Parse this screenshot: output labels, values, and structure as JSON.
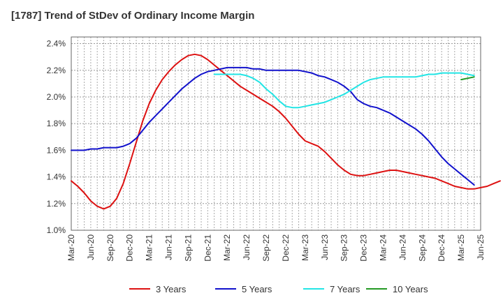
{
  "chart_data": {
    "type": "line",
    "title": "[1787]  Trend of StDev of Ordinary Income Margin",
    "xlabel": "",
    "ylabel": "",
    "ylim": [
      1.0,
      2.45
    ],
    "y_ticks": [
      "1.0%",
      "1.2%",
      "1.4%",
      "1.6%",
      "1.8%",
      "2.0%",
      "2.2%",
      "2.4%"
    ],
    "x_ticks": [
      "Mar-20",
      "Jun-20",
      "Sep-20",
      "Dec-20",
      "Mar-21",
      "Jun-21",
      "Sep-21",
      "Dec-21",
      "Mar-22",
      "Jun-22",
      "Sep-22",
      "Dec-22",
      "Mar-23",
      "Jun-23",
      "Sep-23",
      "Dec-23",
      "Mar-24",
      "Jun-24",
      "Sep-24",
      "Dec-24",
      "Mar-25",
      "Jun-25"
    ],
    "grid": true,
    "legend_position": "bottom",
    "series": [
      {
        "name": "3 Years",
        "color": "#dd1111",
        "points": [
          [
            "Mar-20",
            1.37
          ],
          [
            "Apr-20",
            1.33
          ],
          [
            "May-20",
            1.28
          ],
          [
            "Jun-20",
            1.22
          ],
          [
            "Jul-20",
            1.18
          ],
          [
            "Aug-20",
            1.16
          ],
          [
            "Sep-20",
            1.18
          ],
          [
            "Oct-20",
            1.24
          ],
          [
            "Nov-20",
            1.35
          ],
          [
            "Dec-20",
            1.5
          ],
          [
            "Jan-21",
            1.66
          ],
          [
            "Feb-21",
            1.82
          ],
          [
            "Mar-21",
            1.95
          ],
          [
            "Apr-21",
            2.05
          ],
          [
            "May-21",
            2.13
          ],
          [
            "Jun-21",
            2.19
          ],
          [
            "Jul-21",
            2.24
          ],
          [
            "Aug-21",
            2.28
          ],
          [
            "Sep-21",
            2.31
          ],
          [
            "Oct-21",
            2.32
          ],
          [
            "Nov-21",
            2.31
          ],
          [
            "Dec-21",
            2.28
          ],
          [
            "Jan-22",
            2.24
          ],
          [
            "Feb-22",
            2.2
          ],
          [
            "Mar-22",
            2.16
          ],
          [
            "Apr-22",
            2.12
          ],
          [
            "May-22",
            2.08
          ],
          [
            "Jun-22",
            2.05
          ],
          [
            "Jul-22",
            2.02
          ],
          [
            "Aug-22",
            1.99
          ],
          [
            "Sep-22",
            1.96
          ],
          [
            "Oct-22",
            1.93
          ],
          [
            "Nov-22",
            1.89
          ],
          [
            "Dec-22",
            1.84
          ],
          [
            "Jan-23",
            1.78
          ],
          [
            "Feb-23",
            1.72
          ],
          [
            "Mar-23",
            1.67
          ],
          [
            "Apr-23",
            1.65
          ],
          [
            "May-23",
            1.63
          ],
          [
            "Jun-23",
            1.59
          ],
          [
            "Jul-23",
            1.54
          ],
          [
            "Aug-23",
            1.49
          ],
          [
            "Sep-23",
            1.45
          ],
          [
            "Oct-23",
            1.42
          ],
          [
            "Nov-23",
            1.41
          ],
          [
            "Dec-23",
            1.41
          ],
          [
            "Jan-24",
            1.42
          ],
          [
            "Feb-24",
            1.43
          ],
          [
            "Mar-24",
            1.44
          ],
          [
            "Apr-24",
            1.45
          ],
          [
            "May-24",
            1.45
          ],
          [
            "Jun-24",
            1.44
          ],
          [
            "Jul-24",
            1.43
          ],
          [
            "Aug-24",
            1.42
          ],
          [
            "Sep-24",
            1.41
          ],
          [
            "Oct-24",
            1.4
          ],
          [
            "Nov-24",
            1.39
          ],
          [
            "Dec-24",
            1.37
          ],
          [
            "Jan-25",
            1.35
          ],
          [
            "Feb-25",
            1.33
          ],
          [
            "Mar-25",
            1.32
          ],
          [
            "Apr-25",
            1.31
          ],
          [
            "May-25",
            1.31
          ],
          [
            "Jun-25",
            1.32
          ],
          [
            "Jul-25",
            1.33
          ],
          [
            "Aug-25",
            1.35
          ],
          [
            "Sep-25",
            1.37
          ]
        ]
      },
      {
        "name": "5 Years",
        "color": "#1111cc",
        "points": [
          [
            "Mar-20",
            1.6
          ],
          [
            "Apr-20",
            1.6
          ],
          [
            "May-20",
            1.6
          ],
          [
            "Jun-20",
            1.61
          ],
          [
            "Jul-20",
            1.61
          ],
          [
            "Aug-20",
            1.62
          ],
          [
            "Sep-20",
            1.62
          ],
          [
            "Oct-20",
            1.62
          ],
          [
            "Nov-20",
            1.63
          ],
          [
            "Dec-20",
            1.65
          ],
          [
            "Jan-21",
            1.69
          ],
          [
            "Feb-21",
            1.75
          ],
          [
            "Mar-21",
            1.81
          ],
          [
            "Apr-21",
            1.86
          ],
          [
            "May-21",
            1.91
          ],
          [
            "Jun-21",
            1.96
          ],
          [
            "Jul-21",
            2.01
          ],
          [
            "Aug-21",
            2.06
          ],
          [
            "Sep-21",
            2.1
          ],
          [
            "Oct-21",
            2.14
          ],
          [
            "Nov-21",
            2.17
          ],
          [
            "Dec-21",
            2.19
          ],
          [
            "Jan-22",
            2.2
          ],
          [
            "Feb-22",
            2.21
          ],
          [
            "Mar-22",
            2.22
          ],
          [
            "Apr-22",
            2.22
          ],
          [
            "May-22",
            2.22
          ],
          [
            "Jun-22",
            2.22
          ],
          [
            "Jul-22",
            2.21
          ],
          [
            "Aug-22",
            2.21
          ],
          [
            "Sep-22",
            2.2
          ],
          [
            "Oct-22",
            2.2
          ],
          [
            "Nov-22",
            2.2
          ],
          [
            "Dec-22",
            2.2
          ],
          [
            "Jan-23",
            2.2
          ],
          [
            "Feb-23",
            2.2
          ],
          [
            "Mar-23",
            2.19
          ],
          [
            "Apr-23",
            2.18
          ],
          [
            "May-23",
            2.16
          ],
          [
            "Jun-23",
            2.15
          ],
          [
            "Jul-23",
            2.13
          ],
          [
            "Aug-23",
            2.11
          ],
          [
            "Sep-23",
            2.08
          ],
          [
            "Oct-23",
            2.04
          ],
          [
            "Nov-23",
            1.98
          ],
          [
            "Dec-23",
            1.95
          ],
          [
            "Jan-24",
            1.93
          ],
          [
            "Feb-24",
            1.92
          ],
          [
            "Mar-24",
            1.9
          ],
          [
            "Apr-24",
            1.88
          ],
          [
            "May-24",
            1.85
          ],
          [
            "Jun-24",
            1.82
          ],
          [
            "Jul-24",
            1.79
          ],
          [
            "Aug-24",
            1.76
          ],
          [
            "Sep-24",
            1.72
          ],
          [
            "Oct-24",
            1.67
          ],
          [
            "Nov-24",
            1.61
          ],
          [
            "Dec-24",
            1.55
          ],
          [
            "Jan-25",
            1.5
          ],
          [
            "Feb-25",
            1.46
          ],
          [
            "Mar-25",
            1.42
          ],
          [
            "Apr-25",
            1.38
          ],
          [
            "May-25",
            1.34
          ]
        ]
      },
      {
        "name": "7 Years",
        "color": "#22e5e5",
        "points": [
          [
            "Jan-22",
            2.17
          ],
          [
            "Feb-22",
            2.17
          ],
          [
            "Mar-22",
            2.17
          ],
          [
            "Apr-22",
            2.17
          ],
          [
            "May-22",
            2.17
          ],
          [
            "Jun-22",
            2.16
          ],
          [
            "Jul-22",
            2.14
          ],
          [
            "Aug-22",
            2.11
          ],
          [
            "Sep-22",
            2.06
          ],
          [
            "Oct-22",
            2.02
          ],
          [
            "Nov-22",
            1.97
          ],
          [
            "Dec-22",
            1.93
          ],
          [
            "Jan-23",
            1.92
          ],
          [
            "Feb-23",
            1.92
          ],
          [
            "Mar-23",
            1.93
          ],
          [
            "Apr-23",
            1.94
          ],
          [
            "May-23",
            1.95
          ],
          [
            "Jun-23",
            1.96
          ],
          [
            "Jul-23",
            1.98
          ],
          [
            "Aug-23",
            2.0
          ],
          [
            "Sep-23",
            2.02
          ],
          [
            "Oct-23",
            2.05
          ],
          [
            "Nov-23",
            2.08
          ],
          [
            "Dec-23",
            2.11
          ],
          [
            "Jan-24",
            2.13
          ],
          [
            "Feb-24",
            2.14
          ],
          [
            "Mar-24",
            2.15
          ],
          [
            "Apr-24",
            2.15
          ],
          [
            "May-24",
            2.15
          ],
          [
            "Jun-24",
            2.15
          ],
          [
            "Jul-24",
            2.15
          ],
          [
            "Aug-24",
            2.15
          ],
          [
            "Sep-24",
            2.16
          ],
          [
            "Oct-24",
            2.17
          ],
          [
            "Nov-24",
            2.17
          ],
          [
            "Dec-24",
            2.18
          ],
          [
            "Jan-25",
            2.18
          ],
          [
            "Feb-25",
            2.18
          ],
          [
            "Mar-25",
            2.18
          ],
          [
            "Apr-25",
            2.17
          ],
          [
            "May-25",
            2.16
          ]
        ]
      },
      {
        "name": "10 Years",
        "color": "#229922",
        "points": [
          [
            "Mar-25",
            2.13
          ],
          [
            "Apr-25",
            2.14
          ],
          [
            "May-25",
            2.15
          ]
        ]
      }
    ]
  }
}
